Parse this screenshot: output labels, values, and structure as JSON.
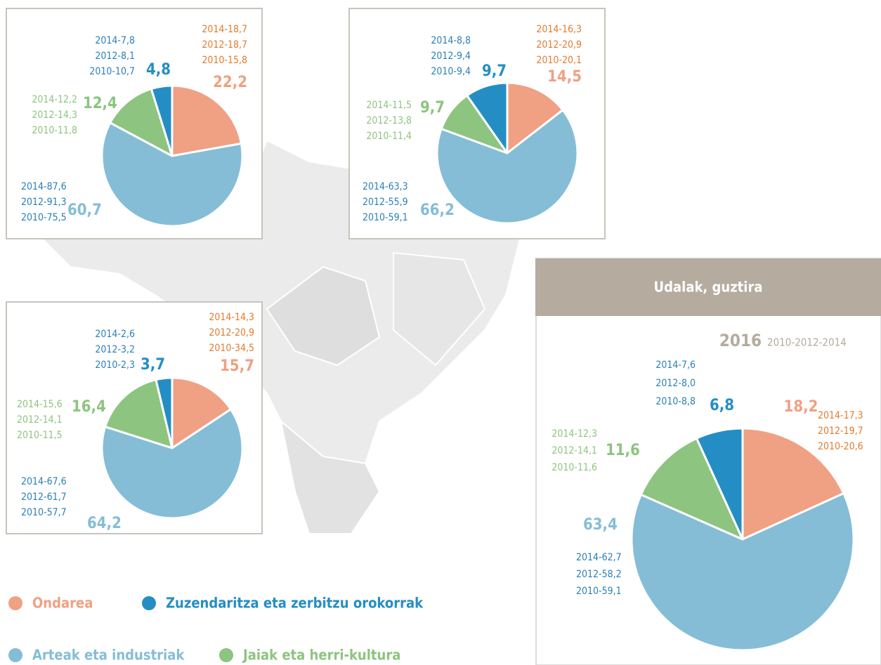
{
  "chart_data": [
    {
      "type": "pie",
      "categories": [
        "Ondarea",
        "Arteak eta industriak",
        "Jaiak eta herri-kultura",
        "Zuzendaritza eta zerbitzu orokorrak"
      ],
      "colors": [
        "#f0a083",
        "#85bdd6",
        "#8dc47f",
        "#248ec4"
      ],
      "values": [
        22.2,
        60.7,
        12.4,
        4.8
      ],
      "value_labels": [
        "22,2",
        "60,7",
        "12,4",
        "4,8"
      ],
      "history": [
        [
          "2014-18,7",
          "2012-18,7",
          "2010-15,8"
        ],
        [
          "2014-87,6",
          "2012-91,3",
          "2010-75,5"
        ],
        [
          "2014-12,2",
          "2012-14,3",
          "2010-11,8"
        ],
        [
          "2014-7,8",
          "2012-8,1",
          "2010-10,7"
        ]
      ]
    },
    {
      "type": "pie",
      "categories": [
        "Ondarea",
        "Arteak eta industriak",
        "Jaiak eta herri-kultura",
        "Zuzendaritza eta zerbitzu orokorrak"
      ],
      "colors": [
        "#f0a083",
        "#85bdd6",
        "#8dc47f",
        "#248ec4"
      ],
      "values": [
        14.5,
        66.2,
        9.7,
        9.7
      ],
      "value_labels": [
        "14,5",
        "66,2",
        "9,7",
        "9,7"
      ],
      "history": [
        [
          "2014-16,3",
          "2012-20,9",
          "2010-20,1"
        ],
        [
          "2014-63,3",
          "2012-55,9",
          "2010-59,1"
        ],
        [
          "2014-11,5",
          "2012-13,8",
          "2010-11,4"
        ],
        [
          "2014-8,8",
          "2012-9,4",
          "2010-9,4"
        ]
      ]
    },
    {
      "type": "pie",
      "categories": [
        "Ondarea",
        "Arteak eta industriak",
        "Jaiak eta herri-kultura",
        "Zuzendaritza eta zerbitzu orokorrak"
      ],
      "colors": [
        "#f0a083",
        "#85bdd6",
        "#8dc47f",
        "#248ec4"
      ],
      "values": [
        15.7,
        64.2,
        16.4,
        3.7
      ],
      "value_labels": [
        "15,7",
        "64,2",
        "16,4",
        "3,7"
      ],
      "history": [
        [
          "2014-14,3",
          "2012-20,9",
          "2010-34,5"
        ],
        [
          "2014-67,6",
          "2012-61,7",
          "2010-57,7"
        ],
        [
          "2014-15,6",
          "2012-14,1",
          "2010-11,5"
        ],
        [
          "2014-2,6",
          "2012-3,2",
          "2010-2,3"
        ]
      ]
    },
    {
      "type": "pie",
      "title": "Udalak, guztira",
      "subtitle": "2016",
      "subtitle_note": "2010-2012-2014",
      "categories": [
        "Ondarea",
        "Arteak eta industriak",
        "Jaiak eta herri-kultura",
        "Zuzendaritza eta zerbitzu orokorrak"
      ],
      "colors": [
        "#f0a083",
        "#85bdd6",
        "#8dc47f",
        "#248ec4"
      ],
      "values": [
        18.2,
        63.4,
        11.6,
        6.8
      ],
      "value_labels": [
        "18,2",
        "63,4",
        "11,6",
        "6,8"
      ],
      "history": [
        [
          "2014-17,3",
          "2012-19,7",
          "2010-20,6"
        ],
        [
          "2014-62,7",
          "2012-58,2",
          "2010-59,1"
        ],
        [
          "2014-12,3",
          "2012-14,1",
          "2010-11,6"
        ],
        [
          "2014-7,6",
          "2012-8,0",
          "2010-8,8"
        ]
      ]
    }
  ]
}
